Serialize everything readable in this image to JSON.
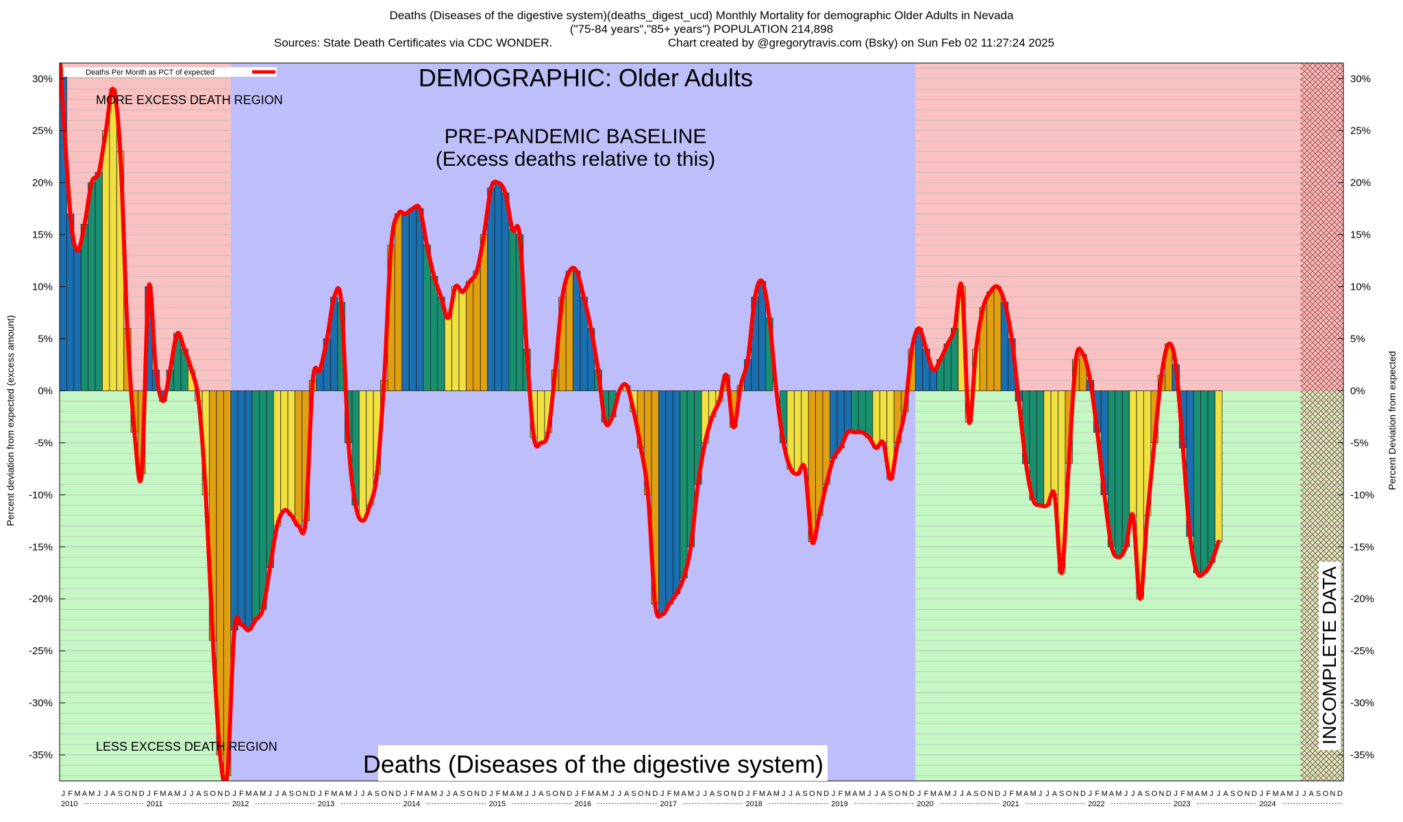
{
  "header": {
    "line1": "Deaths (Diseases of the digestive system)(deaths_digest_ucd) Monthly Mortality for demographic Older Adults in Nevada",
    "line2": "(\"75-84 years\",\"85+ years\") POPULATION 214,898",
    "line3_left": "Sources: State Death Certificates via CDC WONDER.",
    "line3_right": "Chart created by @gregorytravis.com (Bsky) on Sun Feb 02 11:27:24 2025"
  },
  "annotations": {
    "demographic": "DEMOGRAPHIC: Older Adults",
    "baseline_line1": "PRE-PANDEMIC BASELINE",
    "baseline_line2": "(Excess deaths relative to this)",
    "more_excess": "MORE EXCESS DEATH REGION",
    "less_excess": "LESS EXCESS DEATH REGION",
    "cause": "Deaths (Diseases of the digestive system)",
    "incomplete": "INCOMPLETE DATA"
  },
  "colors": {
    "excess_region": "#f9c1c1",
    "deficit_region": "#c4f7c4",
    "baseline_region": "#bebefb",
    "line": "#ff0000",
    "bar_q1": "#1a6fb0",
    "bar_q2": "#189070",
    "bar_q3": "#f0e040",
    "bar_q4": "#e0a010",
    "incomplete_hatch": "#b05050"
  },
  "chart_data": {
    "type": "bar",
    "title": "Deaths (Diseases of the digestive system)(deaths_digest_ucd) Monthly Mortality for demographic Older Adults in Nevada",
    "ylabel_left": "Percent deviation from expected (excess amount)",
    "ylabel_right": "Percent Deviation from expected",
    "legend": "Deaths Per Month as PCT of expected",
    "ylim": [
      -37.5,
      31.5
    ],
    "yticks": [
      "30%",
      "25%",
      "20%",
      "15%",
      "10%",
      "5%",
      "0%",
      "-5%",
      "-10%",
      "-15%",
      "-20%",
      "-25%",
      "-30%",
      "-35%"
    ],
    "month_letters": [
      "J",
      "F",
      "M",
      "A",
      "M",
      "J",
      "J",
      "A",
      "S",
      "O",
      "N",
      "D"
    ],
    "years": [
      "2010",
      "2011",
      "2012",
      "2013",
      "2014",
      "2015",
      "2016",
      "2017",
      "2018",
      "2019",
      "2020",
      "2021",
      "2022",
      "2023",
      "2024"
    ],
    "baseline_years": [
      "2012",
      "2019"
    ],
    "incomplete_from": "2024-07",
    "values": [
      31,
      17,
      13.5,
      16,
      20,
      21,
      25,
      29,
      23,
      6,
      -4,
      -8,
      10,
      2,
      -1,
      2,
      5.5,
      4,
      2,
      -1,
      -10,
      -24,
      -35,
      -37,
      -23,
      -22.5,
      -23,
      -22,
      -21,
      -17,
      -13,
      -11.5,
      -12,
      -13,
      -12.5,
      1,
      2,
      5,
      9,
      8.5,
      -5,
      -11,
      -12.5,
      -11,
      -8,
      1,
      14,
      17,
      17,
      17.5,
      17.5,
      14,
      11,
      9,
      7,
      10,
      9.5,
      10.5,
      11.5,
      15,
      19.5,
      20,
      19,
      15.5,
      15,
      4,
      -4.5,
      -5,
      -4,
      2,
      9,
      11.5,
      11.5,
      9,
      6,
      2,
      -3,
      -2.5,
      0,
      0.5,
      -2,
      -5.5,
      -10,
      -20.5,
      -21.5,
      -20.5,
      -19.5,
      -18,
      -15,
      -9,
      -5,
      -2.5,
      -1,
      1.5,
      -3.5,
      0.5,
      3,
      9,
      10.5,
      7,
      0,
      -5,
      -7.5,
      -8,
      -7.5,
      -14.5,
      -12,
      -9,
      -6.5,
      -5.5,
      -4,
      -4,
      -4,
      -4.5,
      -5.5,
      -5,
      -8.5,
      -5,
      -2,
      4,
      6,
      4,
      2,
      3,
      4.5,
      6,
      10,
      -3,
      4,
      8,
      9.5,
      10,
      8.5,
      5,
      -1,
      -7,
      -10.5,
      -11,
      -11,
      -10,
      -17.5,
      -7,
      3,
      3.5,
      1,
      -4,
      -10,
      -15,
      -16,
      -15,
      -12,
      -20,
      -12,
      -5,
      1.5,
      4.5,
      2.5,
      -5.5,
      -14,
      -17.5,
      -17.5,
      -16.5,
      -14.5
    ],
    "line_values": [
      31.5,
      17,
      13.5,
      16,
      20,
      21,
      25,
      29,
      23,
      6,
      -4,
      -8,
      10,
      2,
      -1,
      2,
      5.5,
      4,
      2,
      -1,
      -10,
      -24,
      -35,
      -37,
      -23,
      -22.5,
      -23,
      -22,
      -21,
      -17,
      -13,
      -11.5,
      -12,
      -13,
      -12.5,
      1,
      2,
      5,
      9,
      8.5,
      -5,
      -11,
      -12.5,
      -11,
      -8,
      1,
      14,
      17,
      17,
      17.5,
      17.5,
      14,
      11,
      9,
      7,
      10,
      9.5,
      10.5,
      11.5,
      15,
      19.5,
      20,
      19,
      15.5,
      15,
      4,
      -4.5,
      -5,
      -4,
      2,
      9,
      11.5,
      11.5,
      9,
      6,
      2,
      -3,
      -2.5,
      0,
      0.5,
      -2,
      -5.5,
      -10,
      -20.5,
      -21.5,
      -20.5,
      -19.5,
      -18,
      -15,
      -9,
      -5,
      -2.5,
      -1,
      1.5,
      -3.5,
      0.5,
      3,
      9,
      10.5,
      7,
      0,
      -5,
      -7.5,
      -8,
      -7.5,
      -14.5,
      -12,
      -9,
      -6.5,
      -5.5,
      -4,
      -4,
      -4,
      -4.5,
      -5.5,
      -5,
      -8.5,
      -5,
      -2,
      4,
      6,
      4,
      2,
      3,
      4.5,
      6,
      10,
      -3,
      4,
      8,
      9.5,
      10,
      8.5,
      5,
      -1,
      -7,
      -10.5,
      -11,
      -11,
      -10,
      -17.5,
      -7,
      3,
      3.5,
      1,
      -4,
      -10,
      -15,
      -16,
      -15,
      -12,
      -20,
      -12,
      -5,
      1.5,
      4.5,
      2.5,
      -5.5,
      -14,
      -17.5,
      -17.5,
      -16.5,
      -14.5
    ]
  }
}
